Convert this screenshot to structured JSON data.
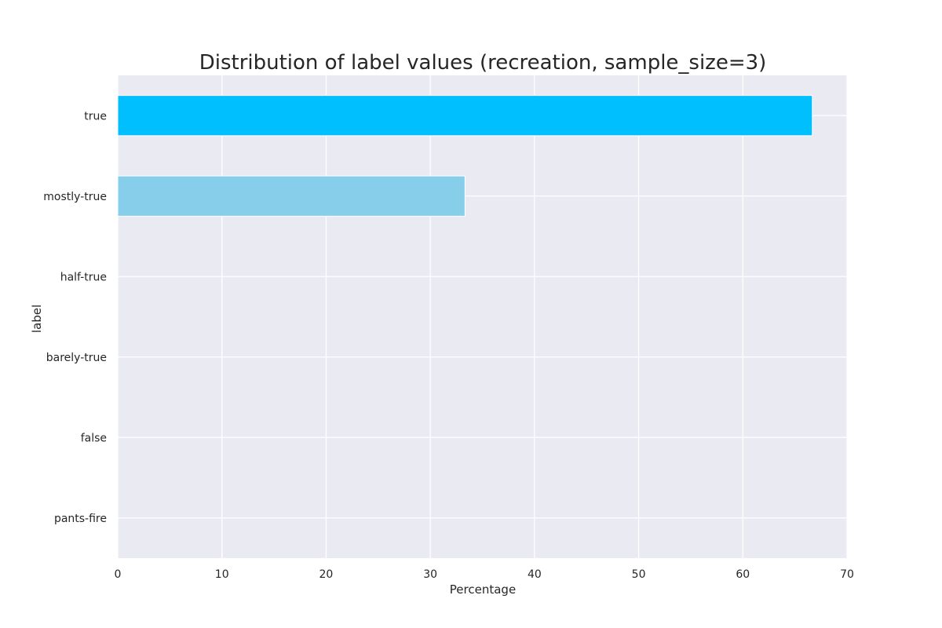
{
  "chart_data": {
    "type": "bar",
    "orientation": "horizontal",
    "title": "Distribution of label values (recreation, sample_size=3)",
    "xlabel": "Percentage",
    "ylabel": "label",
    "categories": [
      "true",
      "mostly-true",
      "half-true",
      "barely-true",
      "false",
      "pants-fire"
    ],
    "values": [
      66.67,
      33.33,
      0,
      0,
      0,
      0
    ],
    "bar_colors": [
      "#00bfff",
      "#87ceeb",
      "#87ceeb",
      "#87ceeb",
      "#87ceeb",
      "#87ceeb"
    ],
    "xlim": [
      0,
      70
    ],
    "xticks": [
      0,
      10,
      20,
      30,
      40,
      50,
      60,
      70
    ],
    "grid": true,
    "background_color": "#eaeaf2",
    "grid_color": "#ffffff"
  }
}
